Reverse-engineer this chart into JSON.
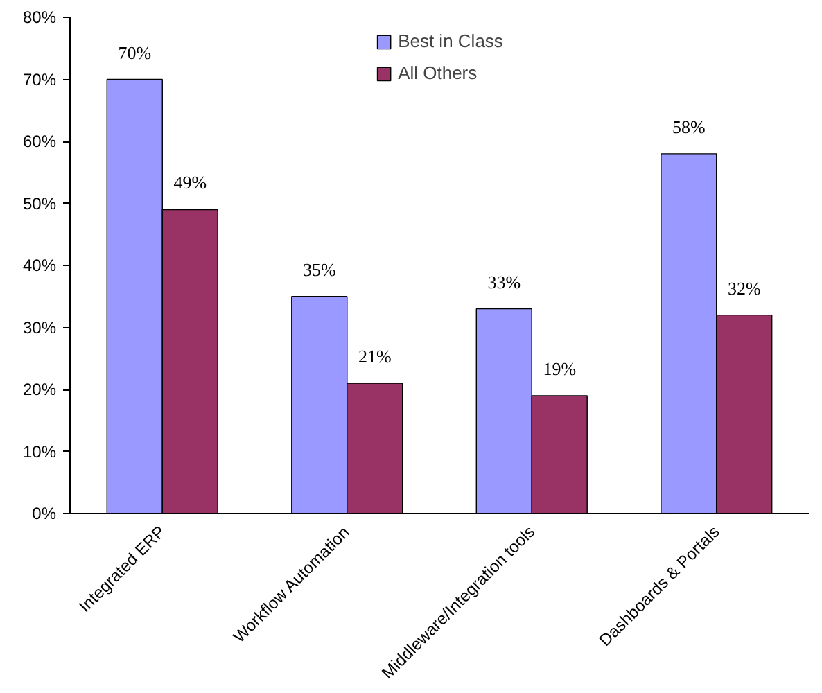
{
  "chart_data": {
    "type": "bar",
    "categories": [
      "Integrated ERP",
      "Workflow Automation",
      "Middleware/Integration tools",
      "Dashboards & Portals"
    ],
    "series": [
      {
        "name": "Best in Class",
        "color": "#9999ff",
        "values": [
          70,
          35,
          33,
          58
        ],
        "value_labels": [
          "70%",
          "35%",
          "33%",
          "58%"
        ]
      },
      {
        "name": "All Others",
        "color": "#993366",
        "values": [
          49,
          21,
          19,
          32
        ],
        "value_labels": [
          "49%",
          "21%",
          "19%",
          "32%"
        ]
      }
    ],
    "ylim": [
      0,
      80
    ],
    "yticks": [
      {
        "value": 0,
        "label": "0%"
      },
      {
        "value": 10,
        "label": "10%"
      },
      {
        "value": 20,
        "label": "20%"
      },
      {
        "value": 30,
        "label": "30%"
      },
      {
        "value": 40,
        "label": "40%"
      },
      {
        "value": 50,
        "label": "50%"
      },
      {
        "value": 60,
        "label": "60%"
      },
      {
        "value": 70,
        "label": "70%"
      },
      {
        "value": 80,
        "label": "80%"
      }
    ],
    "grid": false,
    "legend": "top"
  }
}
